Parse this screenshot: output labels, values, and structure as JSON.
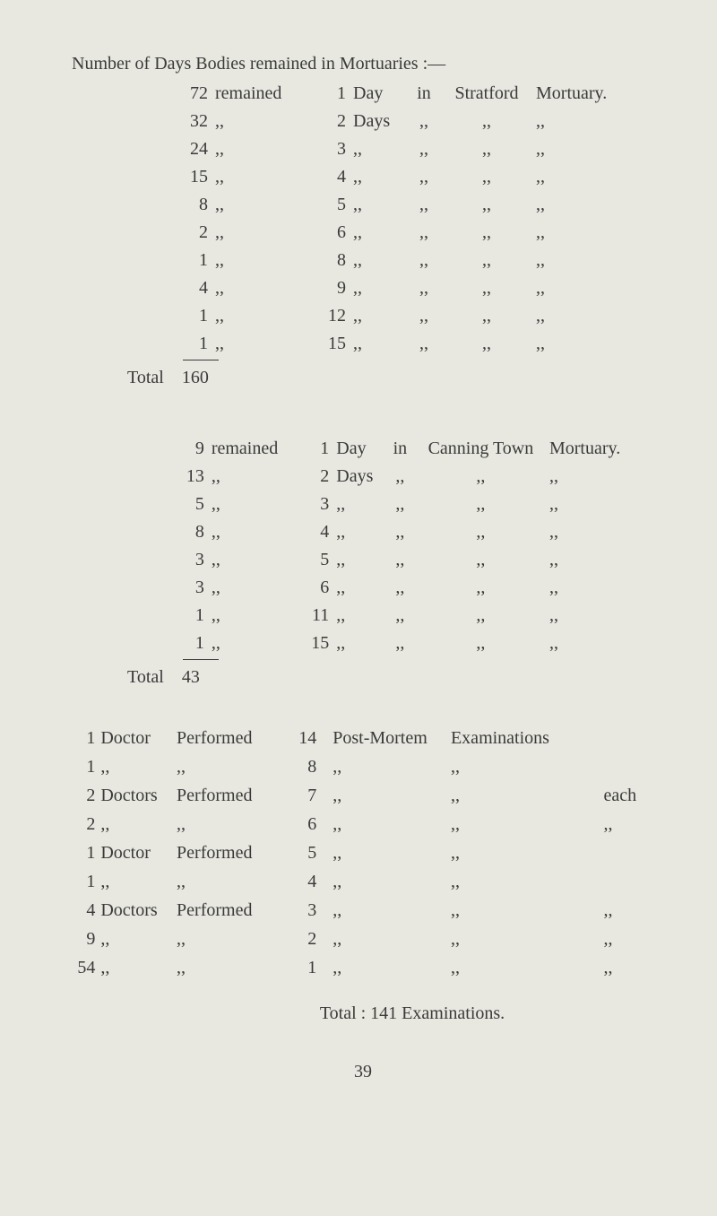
{
  "colors": {
    "background": "#e8e8e0",
    "text": "#3a3a3a"
  },
  "typography": {
    "font_family": "Times New Roman",
    "body_fontsize_pt": 15
  },
  "title": "Number of Days Bodies remained in Mortuaries :—",
  "ditto": ",,",
  "block_a": {
    "first_row": {
      "count": "72",
      "verb": "remained",
      "days": "1",
      "day_word": "Day",
      "in": "in",
      "place": "Stratford",
      "mort": "Mortuary."
    },
    "rows": [
      {
        "count": "32",
        "days": "2",
        "day_word": "Days"
      },
      {
        "count": "24",
        "days": "3"
      },
      {
        "count": "15",
        "days": "4"
      },
      {
        "count": "8",
        "days": "5"
      },
      {
        "count": "2",
        "days": "6"
      },
      {
        "count": "1",
        "days": "8"
      },
      {
        "count": "4",
        "days": "9"
      },
      {
        "count": "1",
        "days": "12"
      },
      {
        "count": "1",
        "days": "15"
      }
    ],
    "total_label": "Total",
    "total_value": "160"
  },
  "block_b": {
    "first_row": {
      "count": "9",
      "verb": "remained",
      "days": "1",
      "day_word": "Day",
      "in": "in",
      "place": "Canning Town",
      "mort": "Mortuary."
    },
    "rows": [
      {
        "count": "13",
        "days": "2",
        "day_word": "Days"
      },
      {
        "count": "5",
        "days": "3"
      },
      {
        "count": "8",
        "days": "4"
      },
      {
        "count": "3",
        "days": "5"
      },
      {
        "count": "3",
        "days": "6"
      },
      {
        "count": "1",
        "days": "11"
      },
      {
        "count": "1",
        "days": "15"
      }
    ],
    "total_label": "Total",
    "total_value": "43"
  },
  "block_c": {
    "first_row": {
      "count": "1",
      "who": "Doctor",
      "verb": "Performed",
      "num": "14",
      "pm": "Post-Mortem",
      "ex": "Examinations"
    },
    "rows": [
      {
        "count": "1",
        "num": "8"
      },
      {
        "count": "2",
        "who": "Doctors",
        "verb": "Performed",
        "num": "7",
        "each": "each"
      },
      {
        "count": "2",
        "num": "6",
        "each": ",,"
      },
      {
        "count": "1",
        "who": "Doctor",
        "verb": "Performed",
        "num": "5"
      },
      {
        "count": "1",
        "num": "4"
      },
      {
        "count": "4",
        "who": "Doctors",
        "verb": "Performed",
        "num": "3",
        "each": ",,"
      },
      {
        "count": "9",
        "num": "2",
        "each": ",,"
      },
      {
        "count": "54",
        "num": "1",
        "each": ",,"
      }
    ],
    "footer": "Total : 141 Examinations."
  },
  "page_number": "39"
}
